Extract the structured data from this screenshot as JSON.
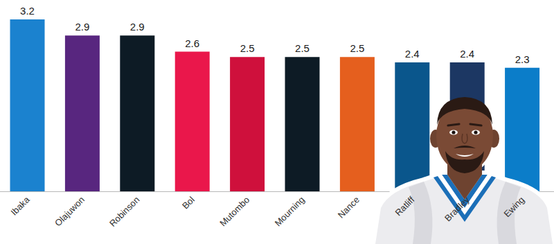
{
  "chart_data": {
    "type": "bar",
    "categories": [
      "Ibaka",
      "Olajuwon",
      "Robinson",
      "Bol",
      "Mutombo",
      "Mourning",
      "Nance",
      "Ratliff",
      "Bradley",
      "Ewing"
    ],
    "values": [
      3.2,
      2.9,
      2.9,
      2.6,
      2.5,
      2.5,
      2.5,
      2.4,
      2.4,
      2.3
    ],
    "colors": [
      "#1b82cf",
      "#58267f",
      "#0d1b25",
      "#ea174b",
      "#cf103c",
      "#0d1b25",
      "#e55f1e",
      "#0a568c",
      "#1c3763",
      "#0b7dc9"
    ],
    "ylim": [
      0,
      3.2
    ],
    "data_labels": true,
    "tick_labels": "x",
    "grid": false
  }
}
